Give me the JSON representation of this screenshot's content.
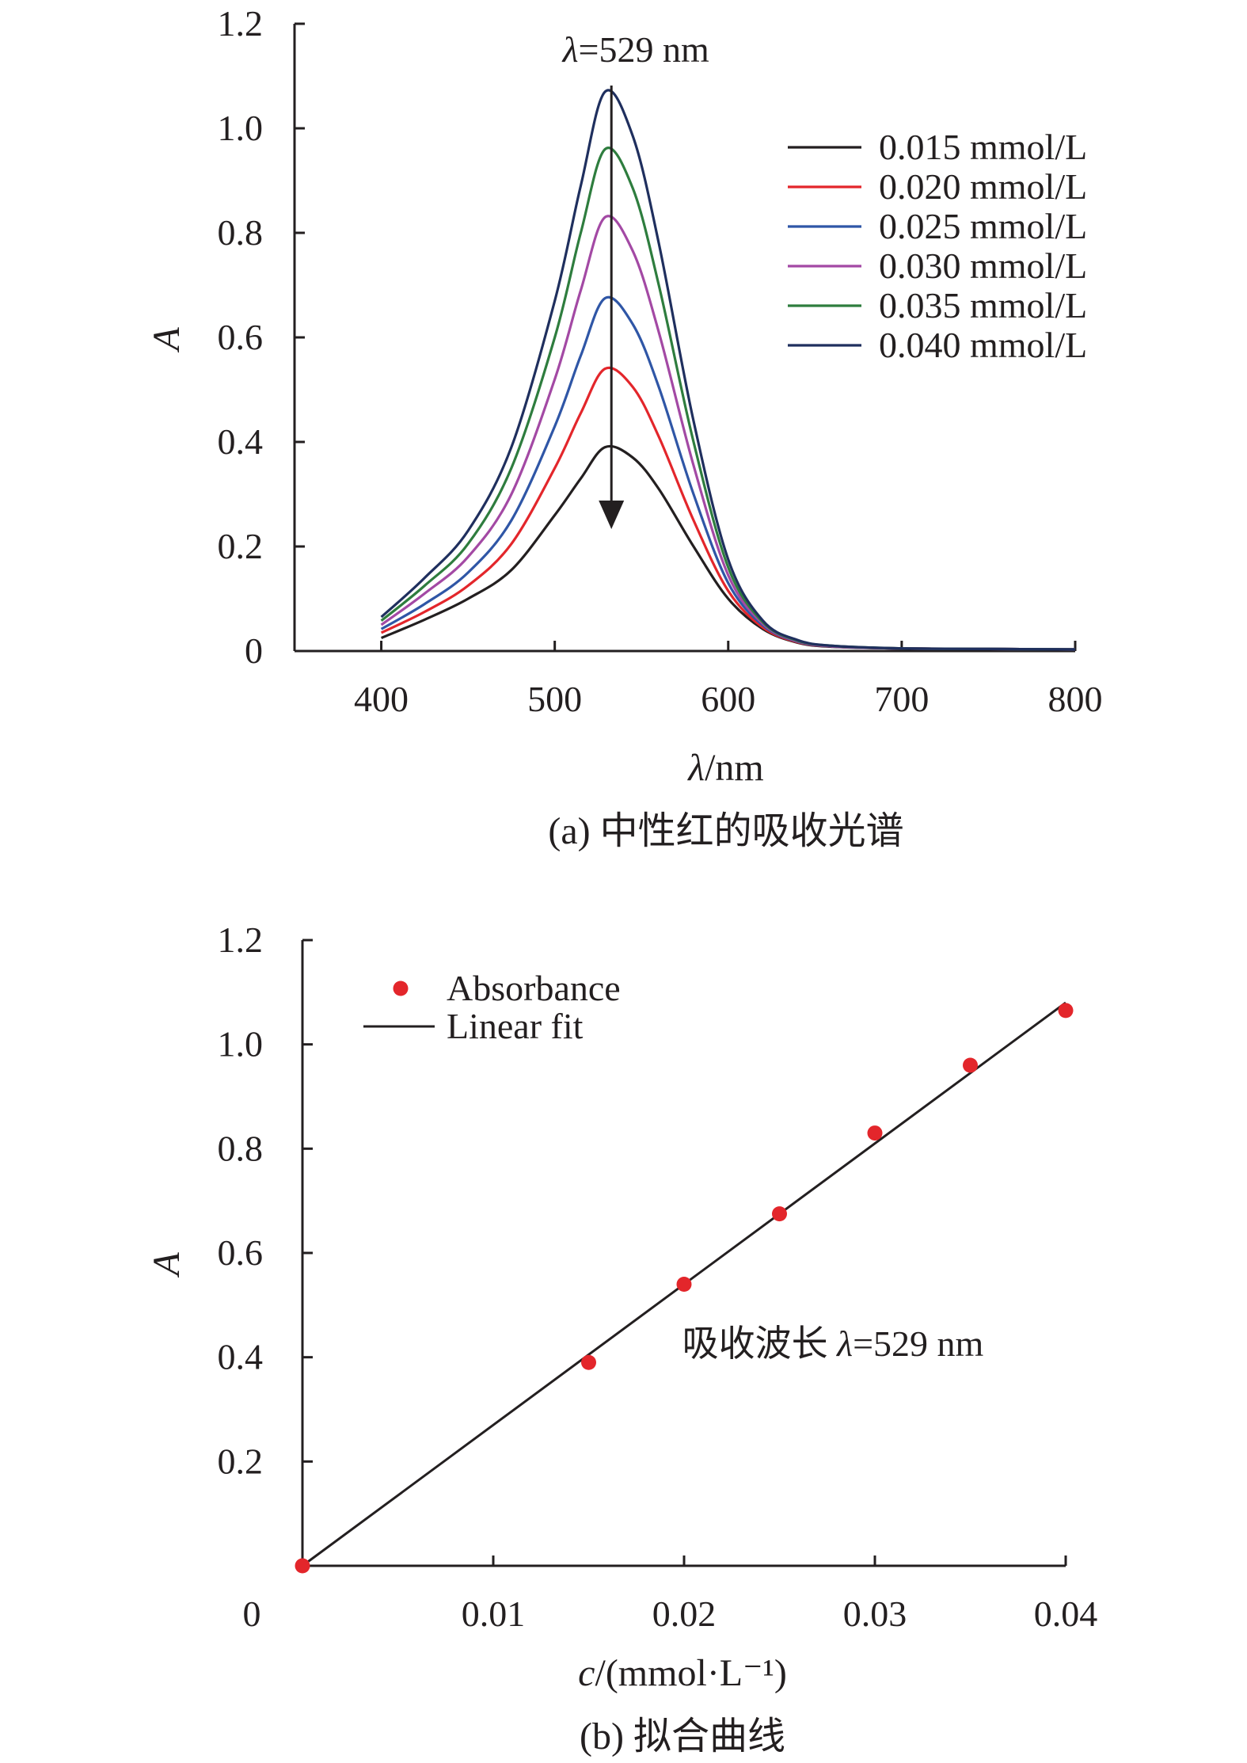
{
  "colors": {
    "axis": "#231f20",
    "series": [
      "#231f20",
      "#e3262b",
      "#2f56a6",
      "#a349a4",
      "#2e7d3e",
      "#1f2f5e"
    ],
    "points": "#e3262b",
    "fit": "#231f20"
  },
  "chart_data": [
    {
      "type": "line",
      "x_label_var": "λ",
      "x_label_unit": "/nm",
      "y_label": "A",
      "caption": "(a) 中性红的吸收光谱",
      "annotation": {
        "var": "λ",
        "text": "=529 nm"
      },
      "xlim": [
        350,
        800
      ],
      "ylim": [
        0,
        1.2
      ],
      "x_ticks": [
        400,
        500,
        600,
        700,
        800
      ],
      "y_ticks": [
        "0",
        "0.2",
        "0.4",
        "0.6",
        "0.8",
        "1.0",
        "1.2"
      ],
      "grid": false,
      "legend_position": "top-right",
      "peak_wavelength": 529,
      "x": [
        400,
        425,
        450,
        475,
        500,
        515,
        529,
        545,
        560,
        580,
        600,
        620,
        640,
        660,
        700,
        750,
        800
      ],
      "series": [
        {
          "name": "0.015 mmol/L",
          "values": [
            0.025,
            0.06,
            0.1,
            0.155,
            0.26,
            0.33,
            0.39,
            0.37,
            0.31,
            0.2,
            0.1,
            0.042,
            0.016,
            0.008,
            0.005,
            0.004,
            0.003
          ]
        },
        {
          "name": "0.020 mmol/L",
          "values": [
            0.035,
            0.075,
            0.125,
            0.205,
            0.35,
            0.455,
            0.54,
            0.505,
            0.41,
            0.25,
            0.115,
            0.045,
            0.017,
            0.009,
            0.005,
            0.004,
            0.003
          ]
        },
        {
          "name": "0.025 mmol/L",
          "values": [
            0.042,
            0.09,
            0.15,
            0.25,
            0.43,
            0.565,
            0.675,
            0.625,
            0.505,
            0.3,
            0.13,
            0.049,
            0.018,
            0.009,
            0.005,
            0.004,
            0.003
          ]
        },
        {
          "name": "0.030 mmol/L",
          "values": [
            0.05,
            0.11,
            0.18,
            0.3,
            0.52,
            0.69,
            0.83,
            0.765,
            0.61,
            0.355,
            0.145,
            0.052,
            0.019,
            0.009,
            0.005,
            0.004,
            0.003
          ]
        },
        {
          "name": "0.035 mmol/L",
          "values": [
            0.058,
            0.125,
            0.205,
            0.35,
            0.6,
            0.8,
            0.96,
            0.885,
            0.7,
            0.4,
            0.16,
            0.055,
            0.02,
            0.01,
            0.005,
            0.004,
            0.003
          ]
        },
        {
          "name": "0.040 mmol/L",
          "values": [
            0.065,
            0.14,
            0.23,
            0.39,
            0.67,
            0.89,
            1.07,
            0.985,
            0.78,
            0.44,
            0.175,
            0.058,
            0.021,
            0.01,
            0.005,
            0.004,
            0.003
          ]
        }
      ]
    },
    {
      "type": "scatter",
      "x_label_var": "c",
      "x_label_unit": "/(mmol·L⁻¹)",
      "y_label": "A",
      "caption": "(b) 拟合曲线",
      "annotation": {
        "prefix": "吸收波长 ",
        "var": "λ",
        "text": "=529 nm"
      },
      "xlim": [
        0,
        0.04
      ],
      "ylim": [
        0,
        1.2
      ],
      "x_ticks": [
        "0",
        "0.01",
        "0.02",
        "0.03",
        "0.04"
      ],
      "y_ticks": [
        "0.2",
        "0.4",
        "0.6",
        "0.8",
        "1.0",
        "1.2"
      ],
      "grid": false,
      "legend_position": "top-left",
      "series": [
        {
          "name": "Absorbance",
          "kind": "points",
          "x": [
            0,
            0.015,
            0.02,
            0.025,
            0.03,
            0.035,
            0.04
          ],
          "y": [
            0,
            0.39,
            0.54,
            0.675,
            0.83,
            0.96,
            1.065
          ]
        },
        {
          "name": "Linear fit",
          "kind": "line",
          "x": [
            0,
            0.04
          ],
          "y": [
            0,
            1.08
          ]
        }
      ]
    }
  ]
}
